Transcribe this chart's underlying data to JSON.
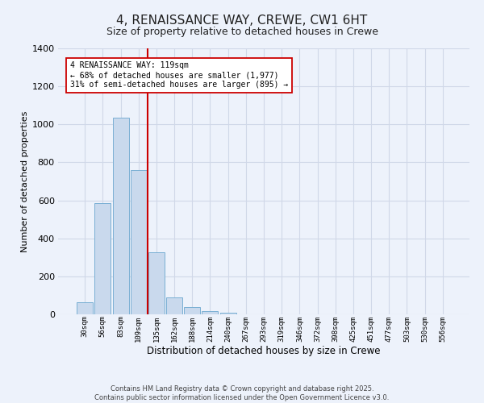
{
  "title": "4, RENAISSANCE WAY, CREWE, CW1 6HT",
  "subtitle": "Size of property relative to detached houses in Crewe",
  "xlabel": "Distribution of detached houses by size in Crewe",
  "ylabel": "Number of detached properties",
  "bar_categories": [
    "30sqm",
    "56sqm",
    "83sqm",
    "109sqm",
    "135sqm",
    "162sqm",
    "188sqm",
    "214sqm",
    "240sqm",
    "267sqm",
    "293sqm",
    "319sqm",
    "346sqm",
    "372sqm",
    "398sqm",
    "425sqm",
    "451sqm",
    "477sqm",
    "503sqm",
    "530sqm",
    "556sqm"
  ],
  "bar_values": [
    65,
    585,
    1035,
    760,
    325,
    90,
    38,
    18,
    8,
    2,
    0,
    0,
    0,
    0,
    0,
    0,
    0,
    0,
    0,
    0,
    0
  ],
  "bar_color": "#c9d9ed",
  "bar_edgecolor": "#7aafd4",
  "vline_x_index": 3,
  "vline_color": "#cc0000",
  "ylim": [
    0,
    1400
  ],
  "yticks": [
    0,
    200,
    400,
    600,
    800,
    1000,
    1200,
    1400
  ],
  "annotation_title": "4 RENAISSANCE WAY: 119sqm",
  "annotation_line1": "← 68% of detached houses are smaller (1,977)",
  "annotation_line2": "31% of semi-detached houses are larger (895) →",
  "annotation_box_color": "#ffffff",
  "annotation_box_edgecolor": "#cc0000",
  "footer_line1": "Contains HM Land Registry data © Crown copyright and database right 2025.",
  "footer_line2": "Contains public sector information licensed under the Open Government Licence v3.0.",
  "grid_color": "#d0d8e8",
  "background_color": "#edf2fb"
}
